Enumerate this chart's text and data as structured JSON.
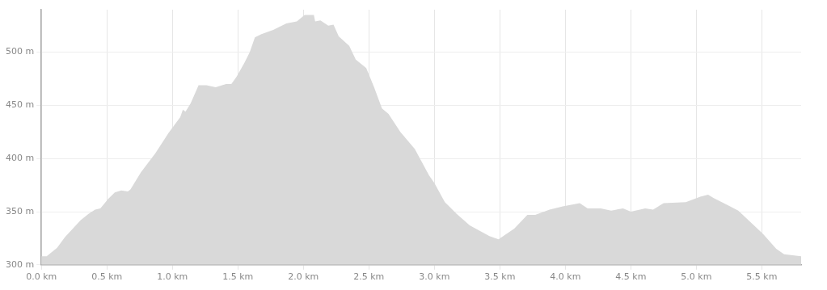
{
  "chart_data": {
    "type": "area",
    "grid": true,
    "legend": false,
    "marker": "none",
    "xlim": [
      0,
      5.8
    ],
    "ylim": [
      300,
      540
    ],
    "xticks": [
      {
        "value": 0,
        "label": "0.0 km"
      },
      {
        "value": 0.5,
        "label": "0.5 km"
      },
      {
        "value": 1,
        "label": "1.0 km"
      },
      {
        "value": 1.5,
        "label": "1.5 km"
      },
      {
        "value": 2,
        "label": "2.0 km"
      },
      {
        "value": 2.5,
        "label": "2.5 km"
      },
      {
        "value": 3,
        "label": "3.0 km"
      },
      {
        "value": 3.5,
        "label": "3.5 km"
      },
      {
        "value": 4,
        "label": "4.0 km"
      },
      {
        "value": 4.5,
        "label": "4.5 km"
      },
      {
        "value": 5,
        "label": "5.0 km"
      },
      {
        "value": 5.5,
        "label": "5.5 km"
      }
    ],
    "yticks": [
      {
        "value": 300,
        "label": "300 m"
      },
      {
        "value": 350,
        "label": "350 m"
      },
      {
        "value": 400,
        "label": "400 m"
      },
      {
        "value": 450,
        "label": "450 m"
      },
      {
        "value": 500,
        "label": "500 m"
      }
    ],
    "series": [
      {
        "color": "#d9d9d9",
        "x": [
          0,
          0.04,
          0.12,
          0.18,
          0.3,
          0.36,
          0.41,
          0.45,
          0.51,
          0.56,
          0.61,
          0.66,
          0.68,
          0.76,
          0.87,
          0.97,
          1.06,
          1.08,
          1.1,
          1.14,
          1.2,
          1.26,
          1.33,
          1.41,
          1.45,
          1.49,
          1.55,
          1.59,
          1.63,
          1.68,
          1.77,
          1.87,
          1.95,
          2.01,
          2.08,
          2.09,
          2.13,
          2.19,
          2.23,
          2.27,
          2.35,
          2.4,
          2.48,
          2.54,
          2.6,
          2.65,
          2.74,
          2.85,
          2.96,
          3,
          3.08,
          3.17,
          3.27,
          3.42,
          3.49,
          3.61,
          3.71,
          3.77,
          3.88,
          3.98,
          4.11,
          4.17,
          4.27,
          4.35,
          4.44,
          4.5,
          4.61,
          4.67,
          4.75,
          4.92,
          5.03,
          5.09,
          5.13,
          5.24,
          5.32,
          5.44,
          5.51,
          5.61,
          5.67,
          5.8
        ],
        "values": [
          308,
          308,
          316,
          326,
          342,
          348,
          352,
          353,
          362,
          368,
          370,
          369,
          371,
          387,
          405,
          424,
          439,
          446,
          444,
          452,
          469,
          469,
          467,
          470,
          470,
          477,
          490,
          500,
          514,
          517,
          521,
          527,
          529,
          535,
          535,
          529,
          530,
          525,
          526,
          515,
          506,
          493,
          485,
          467,
          447,
          442,
          425,
          409,
          384,
          377,
          359,
          348,
          337,
          327,
          324,
          334,
          347,
          347,
          352,
          355,
          358,
          353,
          353,
          351,
          353,
          350,
          353,
          352,
          358,
          359,
          364,
          366,
          363,
          356,
          351,
          337,
          329,
          315,
          310,
          308
        ]
      }
    ]
  }
}
